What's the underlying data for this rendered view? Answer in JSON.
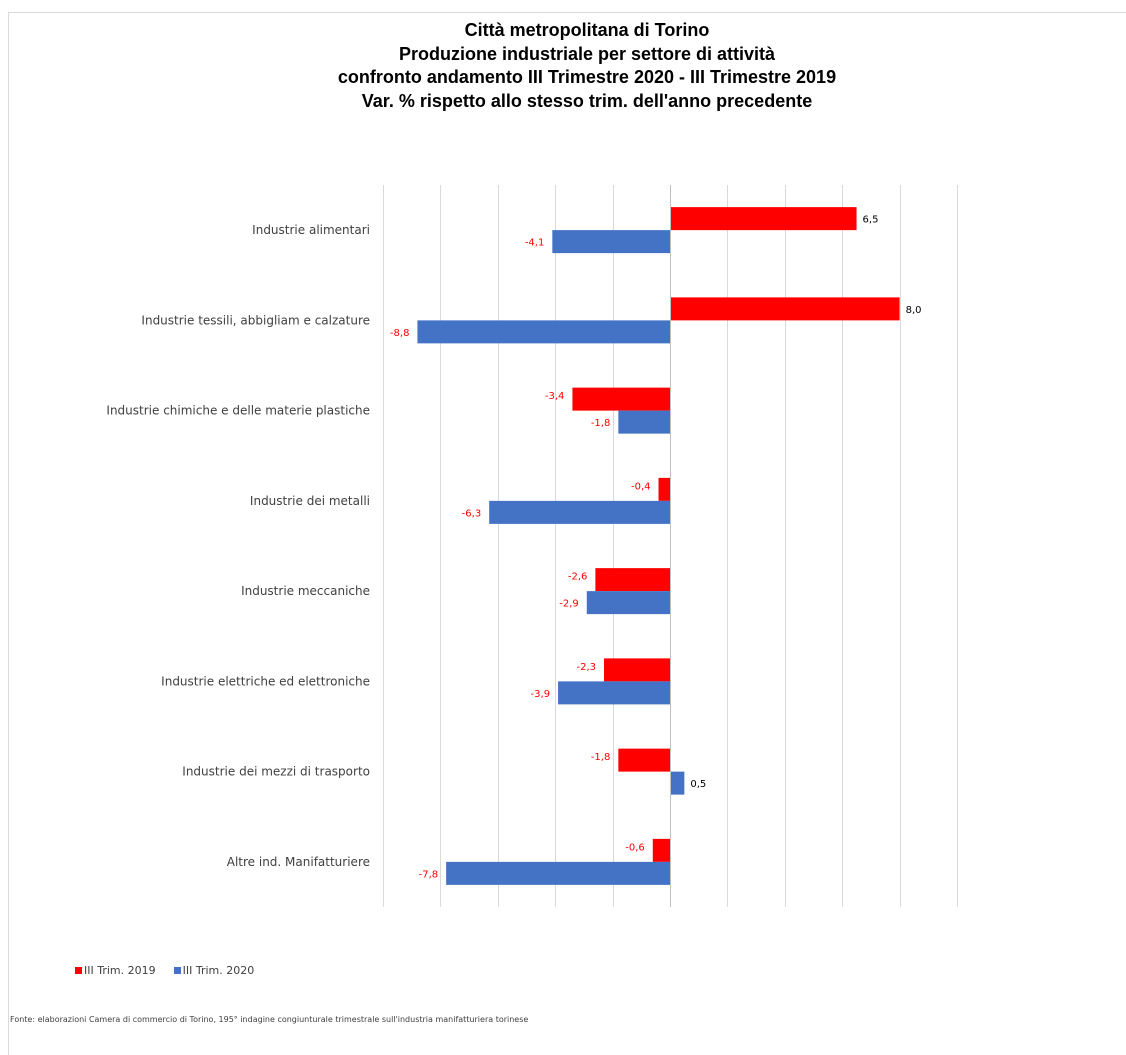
{
  "title_lines": [
    "Città metropolitana di Torino",
    "Produzione industriale per settore di attività",
    "confronto andamento III Trimestre 2020 - III Trimestre 2019",
    "Var. % rispetto allo stesso trim. dell'anno precedente"
  ],
  "chart_data": {
    "type": "bar",
    "orientation": "horizontal",
    "title": "Città metropolitana di Torino / Produzione industriale per settore di attività / confronto andamento III Trimestre 2020 - III Trimestre 2019 / Var. % rispetto allo stesso trim. dell'anno precedente",
    "categories": [
      "Industrie alimentari",
      "Industrie tessili, abbigliam e calzature",
      "Industrie chimiche e delle materie plastiche",
      "Industrie dei metalli",
      "Industrie meccaniche",
      "Industrie elettriche ed elettroniche",
      "Industrie dei mezzi di trasporto",
      "Altre ind. Manifatturiere"
    ],
    "series": [
      {
        "name": "III Trim. 2019",
        "color": "#ff0000",
        "values": [
          6.5,
          8.0,
          -3.4,
          -0.4,
          -2.6,
          -2.3,
          -1.8,
          -0.6
        ],
        "labels": [
          "6,5",
          "8,0",
          "-3,4",
          "-0,4",
          "-2,6",
          "-2,3",
          "-1,8",
          "-0,6"
        ]
      },
      {
        "name": "III Trim. 2020",
        "color": "#4472c4",
        "values": [
          -4.1,
          -8.8,
          -1.8,
          -6.3,
          -2.9,
          -3.9,
          0.5,
          -7.8
        ],
        "labels": [
          "-4,1",
          "-8,8",
          "-1,8",
          "-6,3",
          "-2,9",
          "-3,9",
          "0,5",
          "-7,8"
        ]
      }
    ],
    "xlim": [
      -10,
      10
    ],
    "grid": true,
    "legend": "bottom-left",
    "negative_label_color": "#ff0000",
    "positive_label_color": "#000000"
  },
  "legend": {
    "items": [
      {
        "label": "III Trim. 2019",
        "color": "#ff0000"
      },
      {
        "label": "III Trim. 2020",
        "color": "#4472c4"
      }
    ]
  },
  "source": "Fonte: elaborazioni Camera di commercio di Torino, 195° indagine congiunturale trimestrale sull'industria manifatturiera torinese"
}
